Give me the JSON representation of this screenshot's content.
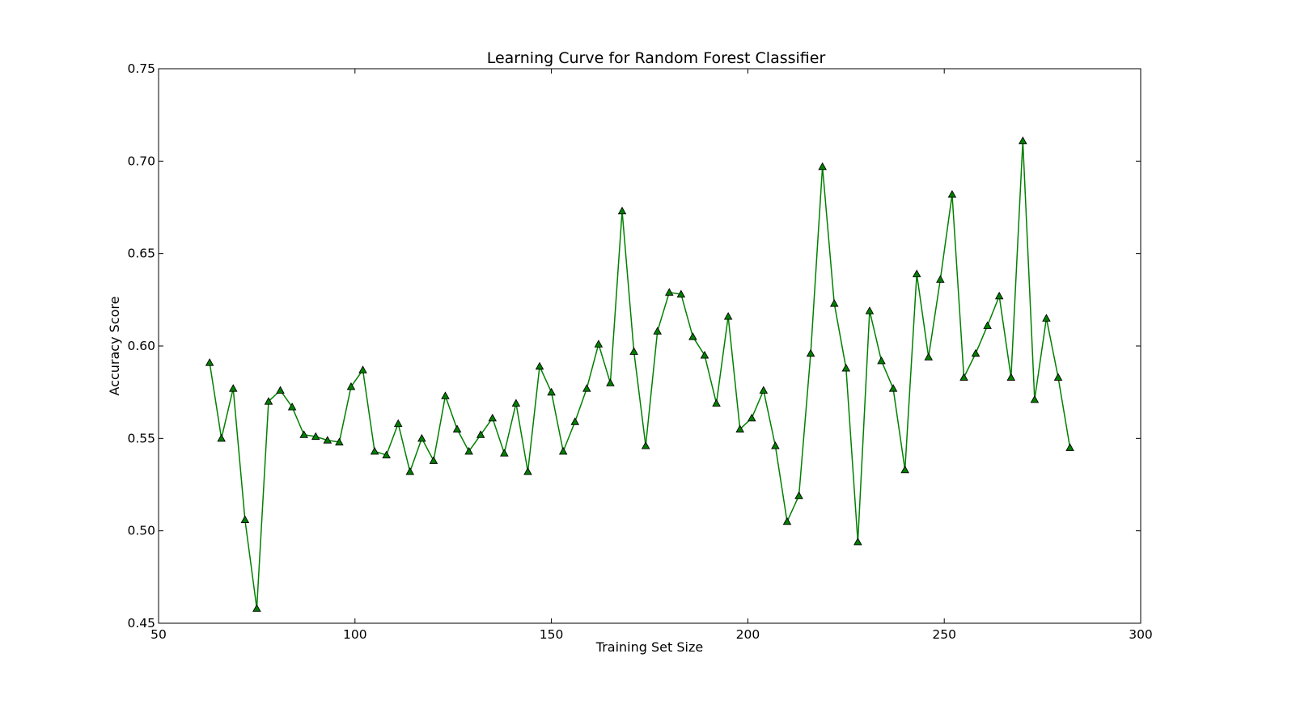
{
  "chart_data": {
    "type": "line",
    "title": "Learning Curve for Random Forest Classifier",
    "xlabel": "Training Set Size",
    "ylabel": "Accuracy Score",
    "xlim": [
      50,
      300
    ],
    "ylim": [
      0.45,
      0.75
    ],
    "xticks": [
      50,
      100,
      150,
      200,
      250,
      300
    ],
    "xtick_labels": [
      "50",
      "100",
      "150",
      "200",
      "250",
      "300"
    ],
    "yticks": [
      0.45,
      0.5,
      0.55,
      0.6,
      0.65,
      0.7,
      0.75
    ],
    "ytick_labels": [
      "0.45",
      "0.50",
      "0.55",
      "0.60",
      "0.65",
      "0.70",
      "0.75"
    ],
    "grid": false,
    "legend": "none",
    "marker": "triangle-up",
    "line_color": "#008000",
    "marker_edge_color": "#000000",
    "series": [
      {
        "x": [
          63,
          66,
          69,
          72,
          75,
          78,
          81,
          84,
          87,
          90,
          93,
          96,
          99,
          102,
          105,
          108,
          111,
          114,
          117,
          120,
          123,
          126,
          129,
          132,
          135,
          138,
          141,
          144,
          147,
          150,
          153,
          156,
          159,
          162,
          165,
          168,
          171,
          174,
          177,
          180,
          183,
          186,
          189,
          192,
          195,
          198,
          201,
          204,
          207,
          210,
          213,
          216,
          219,
          222,
          225,
          228,
          231,
          234,
          237,
          240,
          243,
          246,
          249,
          252,
          255,
          258,
          261,
          264,
          267,
          270,
          273,
          276,
          279,
          282
        ],
        "y": [
          0.591,
          0.55,
          0.577,
          0.506,
          0.458,
          0.57,
          0.576,
          0.567,
          0.552,
          0.551,
          0.549,
          0.548,
          0.578,
          0.587,
          0.543,
          0.541,
          0.558,
          0.532,
          0.55,
          0.538,
          0.573,
          0.555,
          0.543,
          0.552,
          0.561,
          0.542,
          0.569,
          0.532,
          0.589,
          0.575,
          0.543,
          0.559,
          0.577,
          0.601,
          0.58,
          0.673,
          0.597,
          0.546,
          0.608,
          0.629,
          0.628,
          0.605,
          0.595,
          0.569,
          0.616,
          0.555,
          0.561,
          0.576,
          0.546,
          0.505,
          0.519,
          0.596,
          0.697,
          0.623,
          0.588,
          0.494,
          0.619,
          0.592,
          0.577,
          0.533,
          0.639,
          0.594,
          0.636,
          0.682,
          0.583,
          0.596,
          0.611,
          0.627,
          0.583,
          0.711,
          0.571,
          0.615,
          0.583,
          0.545
        ]
      }
    ]
  }
}
